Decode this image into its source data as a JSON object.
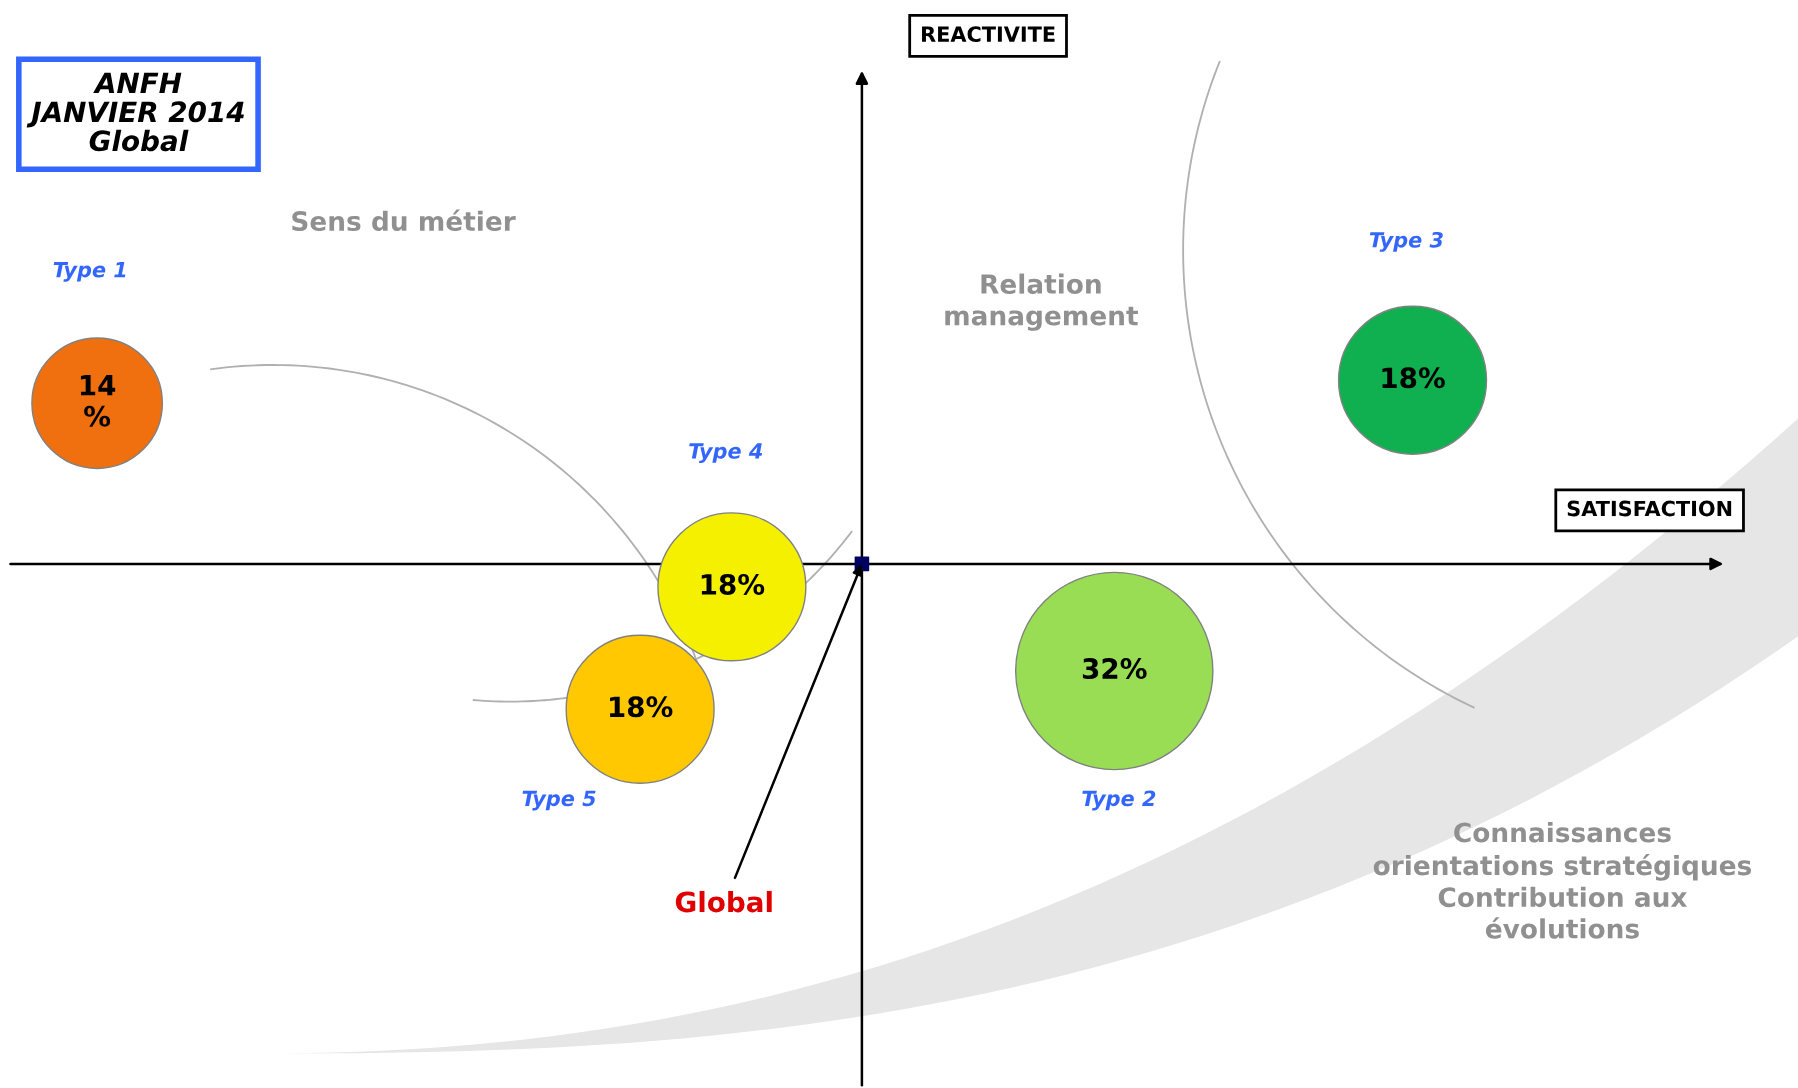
{
  "chart_data": {
    "type": "other",
    "title": "ANFH\nJANVIER 2014\nGlobal",
    "xlabel": "SATISFACTION",
    "ylabel": "REACTIVITE",
    "categories": [
      "Type 1",
      "Type 4",
      "Type 5",
      "Type 2",
      "Type 3"
    ],
    "values": [
      14,
      18,
      18,
      32,
      18
    ],
    "value_labels": [
      "14\n%",
      "18%",
      "18%",
      "32%",
      "18%"
    ],
    "colors": [
      "#f07010",
      "#f5f000",
      "#ffc800",
      "#99dd55",
      "#10b050"
    ],
    "annotations": [
      "Global",
      "Sens du métier",
      "Relation\nmanagement",
      "Connaissances\norientations stratégiques\nContribution aux\névolutions"
    ]
  }
}
